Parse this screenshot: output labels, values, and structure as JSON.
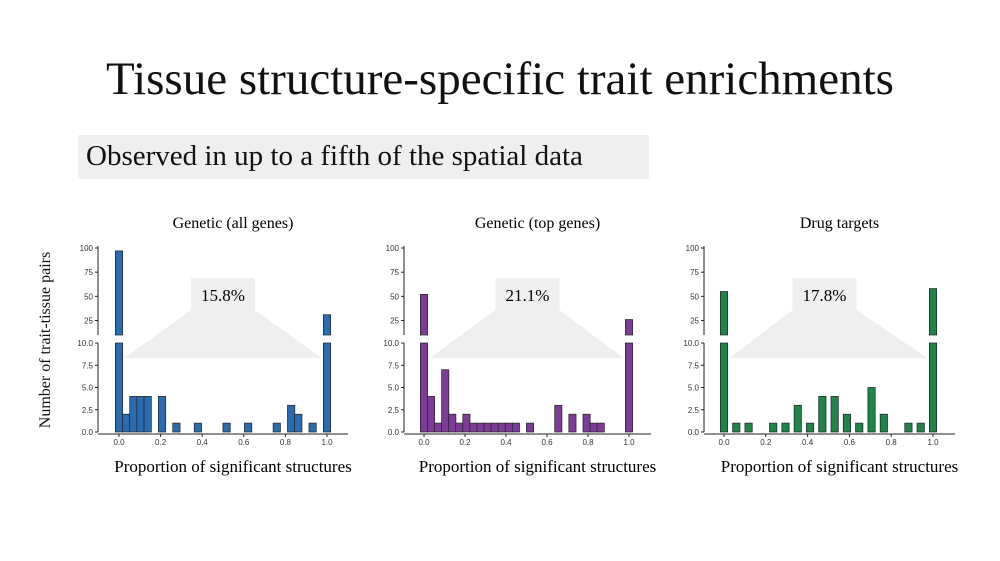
{
  "slide": {
    "title": "Tissue structure-specific trait enrichments",
    "subtitle": "Observed in up to a fifth of the spatial data",
    "ylabel": "Number of trait-tissue pairs"
  },
  "chart_data": [
    {
      "type": "bar",
      "title": "Genetic (all genes)",
      "xlabel": "Proportion of significant structures",
      "ylabel": "Number of trait-tissue pairs",
      "color": "#2b6cb0",
      "broken_axis": true,
      "ylim_upper": [
        10,
        100
      ],
      "ylim_lower": [
        0,
        10
      ],
      "upper_ticks": [
        "100",
        "75",
        "50",
        "25"
      ],
      "lower_ticks": [
        "10.0",
        "7.5",
        "5.0",
        "2.5",
        "0.0"
      ],
      "x_ticks": [
        "0.0",
        "0.2",
        "0.4",
        "0.6",
        "0.8",
        "1.0"
      ],
      "bin_centers": [
        0.0,
        0.0345,
        0.069,
        0.1035,
        0.138,
        0.2069,
        0.2759,
        0.3793,
        0.5172,
        0.6207,
        0.7586,
        0.8276,
        0.8621,
        0.931,
        1.0
      ],
      "values": [
        97,
        2,
        4,
        4,
        4,
        4,
        1,
        1,
        1,
        1,
        1,
        3,
        2,
        1,
        31
      ],
      "annotation": "15.8%"
    },
    {
      "type": "bar",
      "title": "Genetic (top genes)",
      "xlabel": "Proportion of significant structures",
      "ylabel": "Number of trait-tissue pairs",
      "color": "#7d3c98",
      "broken_axis": true,
      "ylim_upper": [
        10,
        100
      ],
      "ylim_lower": [
        0,
        10
      ],
      "upper_ticks": [
        "100",
        "75",
        "50",
        "25"
      ],
      "lower_ticks": [
        "10.0",
        "7.5",
        "5.0",
        "2.5",
        "0.0"
      ],
      "x_ticks": [
        "0.0",
        "0.2",
        "0.4",
        "0.6",
        "0.8",
        "1.0"
      ],
      "bin_centers": [
        0.0,
        0.0345,
        0.069,
        0.1035,
        0.138,
        0.1724,
        0.2069,
        0.2414,
        0.2759,
        0.3103,
        0.3448,
        0.3793,
        0.4138,
        0.4483,
        0.5172,
        0.6552,
        0.7241,
        0.7931,
        0.8276,
        0.8621,
        1.0
      ],
      "values": [
        52,
        4,
        1,
        7,
        2,
        1,
        2,
        1,
        1,
        1,
        1,
        1,
        1,
        1,
        1,
        3,
        2,
        2,
        1,
        1,
        26
      ],
      "annotation": "21.1%"
    },
    {
      "type": "bar",
      "title": "Drug targets",
      "xlabel": "Proportion of significant structures",
      "ylabel": "Number of trait-tissue pairs",
      "color": "#1e8449",
      "broken_axis": true,
      "ylim_upper": [
        10,
        100
      ],
      "ylim_lower": [
        0,
        10
      ],
      "upper_ticks": [
        "100",
        "75",
        "50",
        "25"
      ],
      "lower_ticks": [
        "10.0",
        "7.5",
        "5.0",
        "2.5",
        "0.0"
      ],
      "x_ticks": [
        "0.0",
        "0.2",
        "0.4",
        "0.6",
        "0.8",
        "1.0"
      ],
      "bin_centers": [
        0.0,
        0.0588,
        0.1176,
        0.2353,
        0.2941,
        0.3529,
        0.4118,
        0.4706,
        0.5294,
        0.5882,
        0.6471,
        0.7059,
        0.7647,
        0.8824,
        0.9412,
        1.0
      ],
      "values": [
        55,
        1,
        1,
        1,
        1,
        3,
        1,
        4,
        4,
        2,
        1,
        5,
        2,
        1,
        1,
        58
      ],
      "annotation": "17.8%"
    }
  ]
}
